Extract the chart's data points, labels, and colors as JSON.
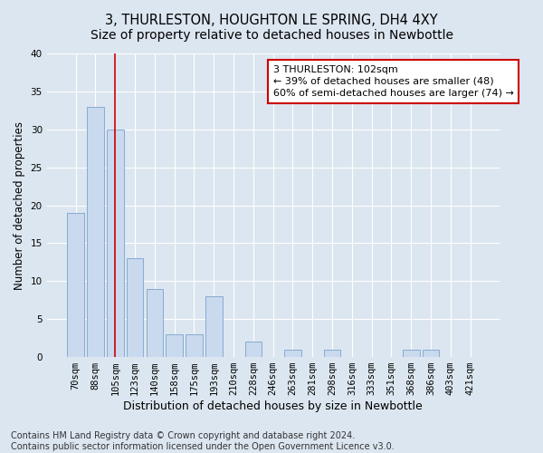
{
  "title": "3, THURLESTON, HOUGHTON LE SPRING, DH4 4XY",
  "subtitle": "Size of property relative to detached houses in Newbottle",
  "xlabel": "Distribution of detached houses by size in Newbottle",
  "ylabel": "Number of detached properties",
  "categories": [
    "70sqm",
    "88sqm",
    "105sqm",
    "123sqm",
    "140sqm",
    "158sqm",
    "175sqm",
    "193sqm",
    "210sqm",
    "228sqm",
    "246sqm",
    "263sqm",
    "281sqm",
    "298sqm",
    "316sqm",
    "333sqm",
    "351sqm",
    "368sqm",
    "386sqm",
    "403sqm",
    "421sqm"
  ],
  "values": [
    19,
    33,
    30,
    13,
    9,
    3,
    3,
    8,
    0,
    2,
    0,
    1,
    0,
    1,
    0,
    0,
    0,
    1,
    1,
    0,
    0
  ],
  "bar_color": "#c9d9ee",
  "bar_edge_color": "#7aa3cc",
  "highlight_index": 2,
  "highlight_line_color": "#cc0000",
  "annotation_line1": "3 THURLESTON: 102sqm",
  "annotation_line2": "← 39% of detached houses are smaller (48)",
  "annotation_line3": "60% of semi-detached houses are larger (74) →",
  "annotation_box_color": "#ffffff",
  "annotation_box_edge_color": "#cc0000",
  "ylim": [
    0,
    40
  ],
  "yticks": [
    0,
    5,
    10,
    15,
    20,
    25,
    30,
    35,
    40
  ],
  "background_color": "#dce6f0",
  "plot_bg_color": "#dce6f0",
  "footer": "Contains HM Land Registry data © Crown copyright and database right 2024.\nContains public sector information licensed under the Open Government Licence v3.0.",
  "title_fontsize": 10.5,
  "xlabel_fontsize": 9,
  "ylabel_fontsize": 8.5,
  "tick_fontsize": 7.5,
  "annotation_fontsize": 8,
  "footer_fontsize": 7
}
